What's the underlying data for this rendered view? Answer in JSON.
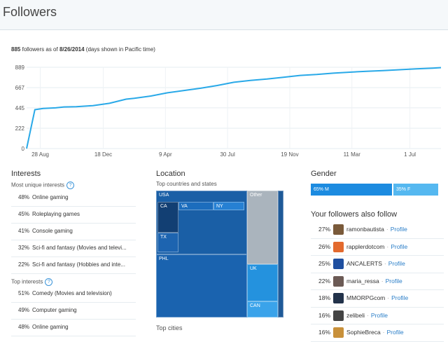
{
  "header": {
    "title": "Followers"
  },
  "summary": {
    "count": "885",
    "text_mid": "followers as of",
    "date": "8/26/2014",
    "text_end": "(days shown in Pacific time)"
  },
  "chart_data": {
    "type": "line",
    "y_ticks": [
      "889",
      "667",
      "445",
      "222",
      "0"
    ],
    "ylim": [
      0,
      889
    ],
    "x_ticks": [
      "28 Aug",
      "18 Dec",
      "9 Apr",
      "30 Jul",
      "19 Nov",
      "11 Mar",
      "1 Jul"
    ],
    "series": [
      {
        "x": [
          0,
          0.02,
          0.04,
          0.07,
          0.09,
          0.12,
          0.16,
          0.2,
          0.24,
          0.26,
          0.3,
          0.34,
          0.38,
          0.42,
          0.46,
          0.5,
          0.54,
          0.58,
          0.62,
          0.66,
          0.7,
          0.74,
          0.78,
          0.82,
          0.86,
          0.9,
          0.94,
          0.98,
          1.0
        ],
        "values": [
          0,
          425,
          438,
          445,
          455,
          458,
          470,
          495,
          540,
          550,
          575,
          610,
          635,
          660,
          690,
          725,
          745,
          760,
          780,
          800,
          810,
          825,
          835,
          845,
          853,
          862,
          872,
          880,
          885
        ]
      }
    ],
    "color": "#29a9e8"
  },
  "interests": {
    "title": "Interests",
    "unique_label": "Most unique interests",
    "unique": [
      {
        "pct": "48%",
        "label": "Online gaming"
      },
      {
        "pct": "45%",
        "label": "Roleplaying games"
      },
      {
        "pct": "41%",
        "label": "Console gaming"
      },
      {
        "pct": "32%",
        "label": "Sci-fi and fantasy (Movies and televi..."
      },
      {
        "pct": "22%",
        "label": "Sci-fi and fantasy (Hobbies and inte..."
      }
    ],
    "top_label": "Top interests",
    "top": [
      {
        "pct": "51%",
        "label": "Comedy (Movies and television)"
      },
      {
        "pct": "49%",
        "label": "Computer gaming"
      },
      {
        "pct": "48%",
        "label": "Online gaming"
      }
    ]
  },
  "location": {
    "title": "Location",
    "countries_label": "Top countries and states",
    "tiles": {
      "usa": "USA",
      "ca": "CA",
      "va": "VA",
      "ny": "NY",
      "tx": "TX",
      "phl": "PHL",
      "other": "Other",
      "uk": "UK",
      "can": "CAN"
    },
    "cities_label": "Top cities"
  },
  "gender": {
    "title": "Gender",
    "male": "65% M",
    "female": "35% F"
  },
  "also_follow": {
    "title": "Your followers also follow",
    "profile_label": "Profile",
    "accounts": [
      {
        "pct": "27%",
        "name": "ramonbautista",
        "color": "#7a5a3a"
      },
      {
        "pct": "26%",
        "name": "rapplerdotcom",
        "color": "#e36a2e"
      },
      {
        "pct": "25%",
        "name": "ANCALERTS",
        "color": "#1f4fa0"
      },
      {
        "pct": "22%",
        "name": "maria_ressa",
        "color": "#6b5a55"
      },
      {
        "pct": "18%",
        "name": "MMORPGcom",
        "color": "#22324a"
      },
      {
        "pct": "16%",
        "name": "zelibeli",
        "color": "#444444"
      },
      {
        "pct": "16%",
        "name": "SophieBreca",
        "color": "#c8903a"
      }
    ]
  }
}
